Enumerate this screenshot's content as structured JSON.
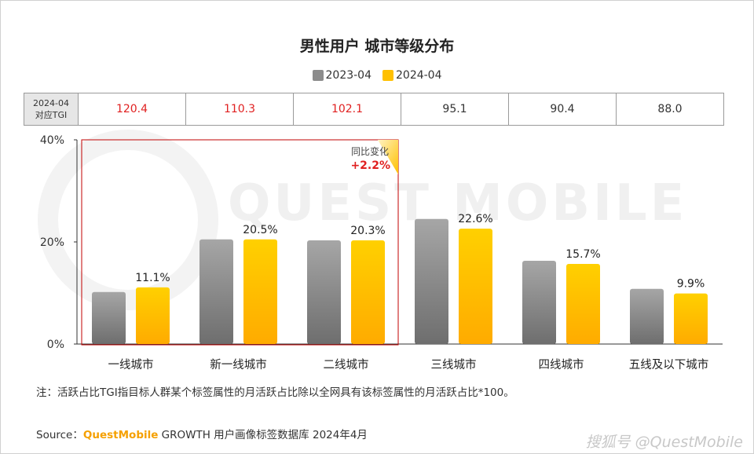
{
  "title": "男性用户 城市等级分布",
  "legend": [
    "2023-04",
    "2024-04"
  ],
  "colors": {
    "2023-04": "#8c8c8c",
    "2024-04": "#ffc000",
    "highlight_tgi": "#e02020",
    "box": "#c00000"
  },
  "tgi_table": {
    "header_line1": "2024-04",
    "header_line2": "对应TGI",
    "values": [
      "120.4",
      "110.3",
      "102.1",
      "95.1",
      "90.4",
      "88.0"
    ],
    "highlight_count": 3
  },
  "chart_data": {
    "type": "bar",
    "categories": [
      "一线城市",
      "新一线城市",
      "二线城市",
      "三线城市",
      "四线城市",
      "五线及以下城市"
    ],
    "series": [
      {
        "name": "2023-04",
        "values": [
          10.2,
          20.5,
          20.3,
          24.5,
          16.3,
          10.8
        ]
      },
      {
        "name": "2024-04",
        "values": [
          11.1,
          20.5,
          20.3,
          22.6,
          15.7,
          9.9
        ]
      }
    ],
    "data_labels": [
      "11.1%",
      "20.5%",
      "20.3%",
      "22.6%",
      "15.7%",
      "9.9%"
    ],
    "y_ticks": [
      "0%",
      "20%",
      "40%"
    ],
    "ylim": [
      0,
      40
    ],
    "grid": false
  },
  "annotation": {
    "label": "同比变化",
    "value": "+2.2%"
  },
  "watermark": "QUEST MOBILE",
  "note": "注：活跃占比TGI指目标人群某个标签属性的月活跃占比除以全网具有该标签属性的月活跃占比*100。",
  "source": {
    "prefix": "Source：",
    "brand": "QuestMobile",
    "rest": " GROWTH 用户画像标签数据库 2024年4月"
  },
  "bottom_watermark": "搜狐号 @QuestMobile"
}
